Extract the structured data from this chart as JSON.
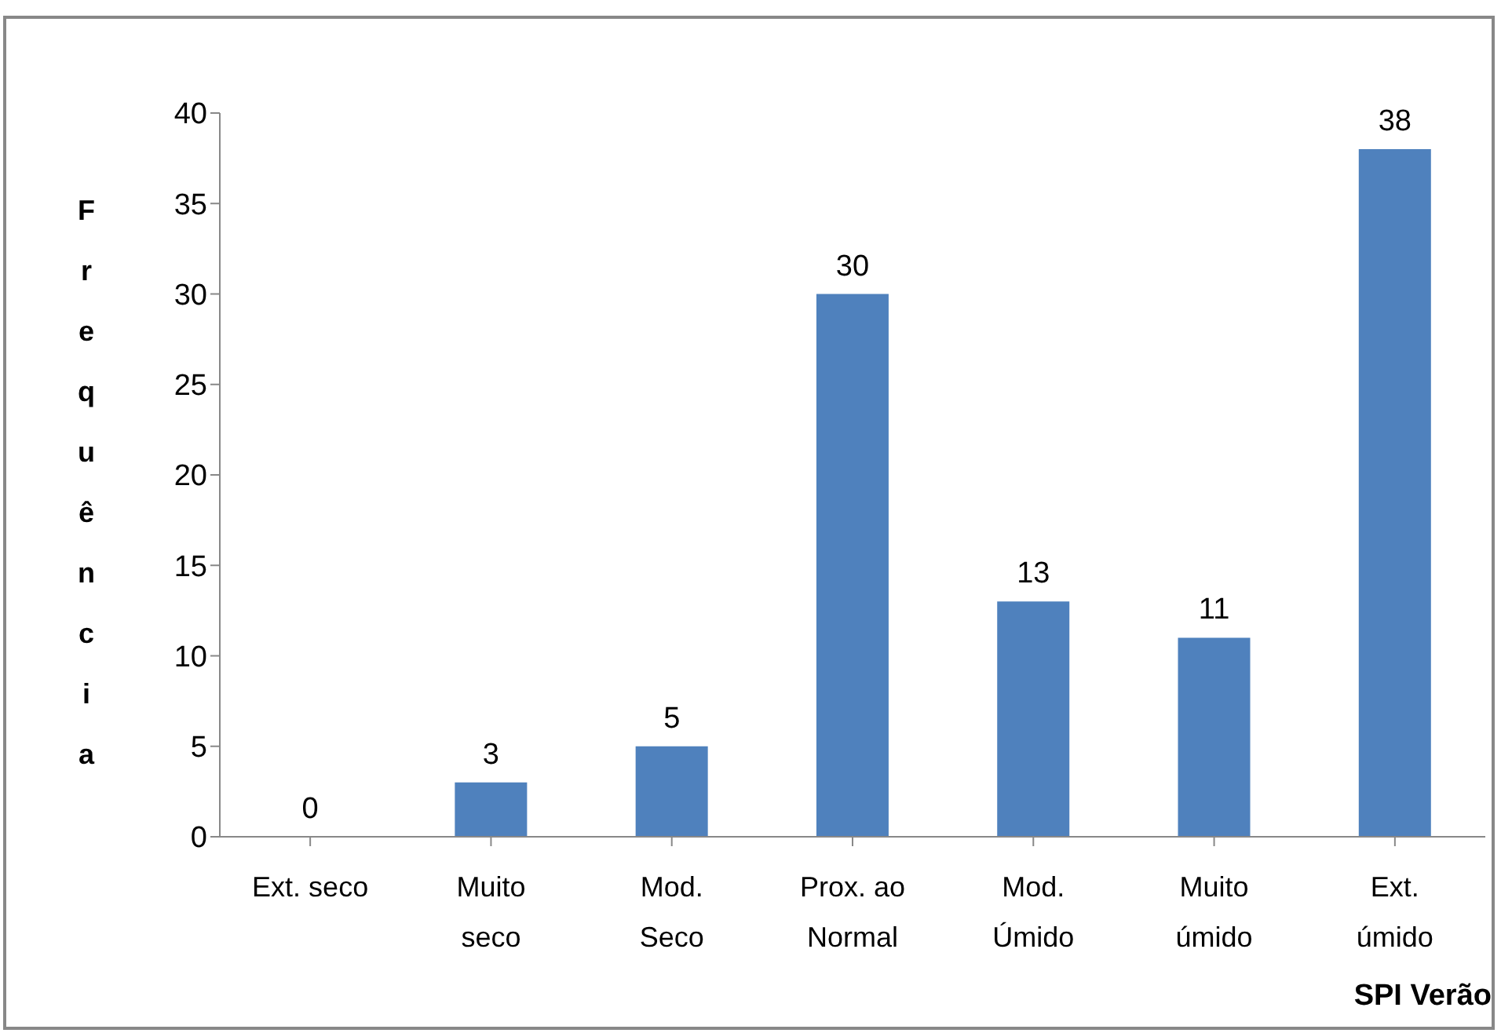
{
  "chart_data": {
    "type": "bar",
    "xlabel": "SPI Verão",
    "ylabel": "Frequência",
    "categories": [
      "Ext. seco",
      "Muito seco",
      "Mod. Seco",
      "Prox. ao Normal",
      "Mod. Úmido",
      "Muito úmido",
      "Ext. úmido"
    ],
    "values": [
      0,
      3,
      5,
      30,
      13,
      11,
      38
    ],
    "color": "#4f81bd",
    "ylim": [
      0,
      40
    ],
    "yticks": [
      0,
      5,
      10,
      15,
      20,
      25,
      30,
      35,
      40
    ],
    "grid": false,
    "data_labels": true,
    "legend": false
  }
}
